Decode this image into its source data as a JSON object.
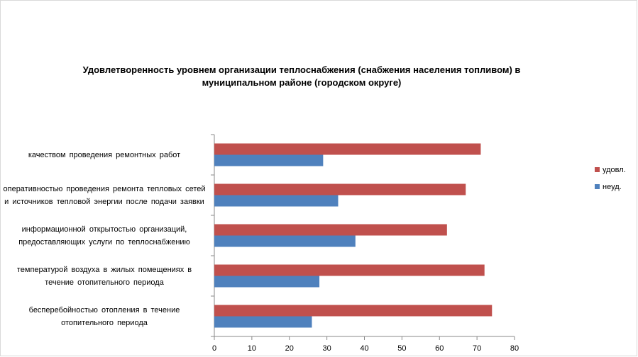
{
  "chart_data": {
    "type": "bar",
    "orientation": "horizontal",
    "title": "Удовлетворенность уровнем организации теплоснабжения (снабжения населения топливом) в муниципальном районе (городском округе)",
    "categories": [
      "качеством проведения ремонтных работ",
      "оперативностью проведения ремонта тепловых сетей и источников тепловой энергии после подачи заявки",
      "информационной открытостью организаций, предоставляющих услуги по теплоснабжению",
      "температурой воздуха в жилых помещениях в течение отопительного периода",
      "бесперебойностью отопления в течение отопительного периода"
    ],
    "series": [
      {
        "name": "удовл.",
        "color": "#c0504d",
        "values": [
          71,
          67,
          62,
          72,
          74
        ]
      },
      {
        "name": "неуд.",
        "color": "#4f81bd",
        "values": [
          29,
          33,
          37.6,
          28,
          26
        ]
      }
    ],
    "xlim": [
      0,
      80
    ],
    "xticks": [
      0,
      10,
      20,
      30,
      40,
      50,
      60,
      70,
      80
    ],
    "grid": false,
    "legend": "right"
  }
}
